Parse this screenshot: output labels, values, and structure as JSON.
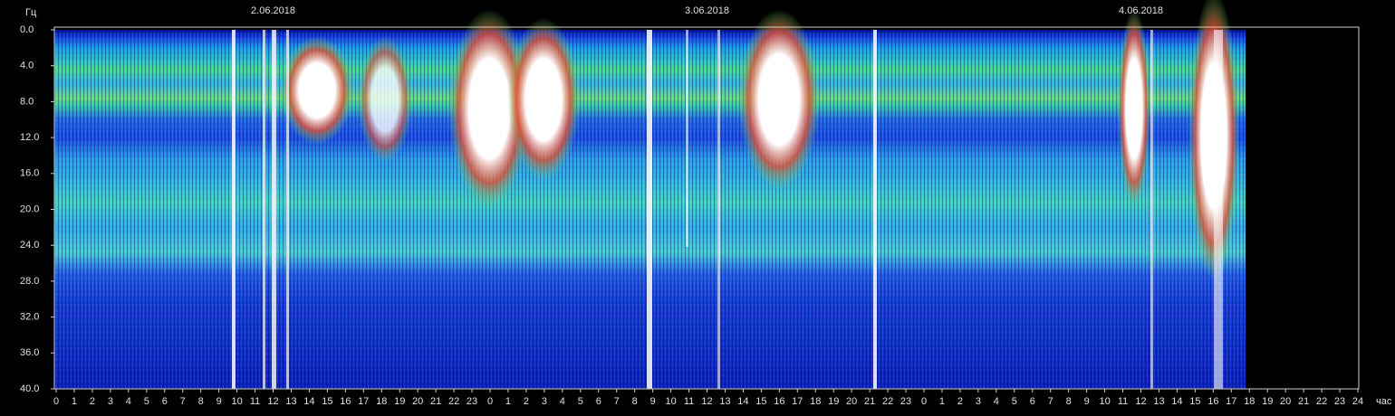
{
  "chart_data": {
    "type": "spectrogram",
    "y_unit": "Гц",
    "x_unit": "час",
    "ylim": [
      0,
      40
    ],
    "y_inverted": true,
    "yticks": [
      {
        "value": 0,
        "label": "0.0"
      },
      {
        "value": 4,
        "label": "4.0"
      },
      {
        "value": 8,
        "label": "8.0"
      },
      {
        "value": 12,
        "label": "12.0"
      },
      {
        "value": 16,
        "label": "16.0"
      },
      {
        "value": 20,
        "label": "20.0"
      },
      {
        "value": 24,
        "label": "24.0"
      },
      {
        "value": 28,
        "label": "28.0"
      },
      {
        "value": 32,
        "label": "32.0"
      },
      {
        "value": 36,
        "label": "36.0"
      },
      {
        "value": 40,
        "label": "40.0"
      }
    ],
    "xlim": [
      0,
      72
    ],
    "xticks": [
      0,
      1,
      2,
      3,
      4,
      5,
      6,
      7,
      8,
      9,
      10,
      11,
      12,
      13,
      14,
      15,
      16,
      17,
      18,
      19,
      20,
      21,
      22,
      23,
      {
        "value": 24,
        "label": "0"
      },
      {
        "value": 25,
        "label": "1"
      },
      {
        "value": 26,
        "label": "2"
      },
      {
        "value": 27,
        "label": "3"
      },
      {
        "value": 28,
        "label": "4"
      },
      {
        "value": 29,
        "label": "5"
      },
      {
        "value": 30,
        "label": "6"
      },
      {
        "value": 31,
        "label": "7"
      },
      {
        "value": 32,
        "label": "8"
      },
      {
        "value": 33,
        "label": "9"
      },
      {
        "value": 34,
        "label": "10"
      },
      {
        "value": 35,
        "label": "11"
      },
      {
        "value": 36,
        "label": "12"
      },
      {
        "value": 37,
        "label": "13"
      },
      {
        "value": 38,
        "label": "14"
      },
      {
        "value": 39,
        "label": "15"
      },
      {
        "value": 40,
        "label": "16"
      },
      {
        "value": 41,
        "label": "17"
      },
      {
        "value": 42,
        "label": "18"
      },
      {
        "value": 43,
        "label": "19"
      },
      {
        "value": 44,
        "label": "20"
      },
      {
        "value": 45,
        "label": "21"
      },
      {
        "value": 46,
        "label": "22"
      },
      {
        "value": 47,
        "label": "23"
      },
      {
        "value": 48,
        "label": "0"
      },
      {
        "value": 49,
        "label": "1"
      },
      {
        "value": 50,
        "label": "2"
      },
      {
        "value": 51,
        "label": "3"
      },
      {
        "value": 52,
        "label": "4"
      },
      {
        "value": 53,
        "label": "5"
      },
      {
        "value": 54,
        "label": "6"
      },
      {
        "value": 55,
        "label": "7"
      },
      {
        "value": 56,
        "label": "8"
      },
      {
        "value": 57,
        "label": "9"
      },
      {
        "value": 58,
        "label": "10"
      },
      {
        "value": 59,
        "label": "11"
      },
      {
        "value": 60,
        "label": "12"
      },
      {
        "value": 61,
        "label": "13"
      },
      {
        "value": 62,
        "label": "14"
      },
      {
        "value": 63,
        "label": "15"
      },
      {
        "value": 64,
        "label": "16"
      },
      {
        "value": 65,
        "label": "17"
      },
      {
        "value": 66,
        "label": "18"
      },
      {
        "value": 67,
        "label": "19"
      },
      {
        "value": 68,
        "label": "20"
      },
      {
        "value": 69,
        "label": "21"
      },
      {
        "value": 70,
        "label": "22"
      },
      {
        "value": 71,
        "label": "23"
      },
      {
        "value": 72,
        "label": "24"
      }
    ],
    "dates": [
      {
        "label": "2.06.2018",
        "x": 12
      },
      {
        "label": "3.06.2018",
        "x": 36
      },
      {
        "label": "4.06.2018",
        "x": 60
      }
    ]
  }
}
